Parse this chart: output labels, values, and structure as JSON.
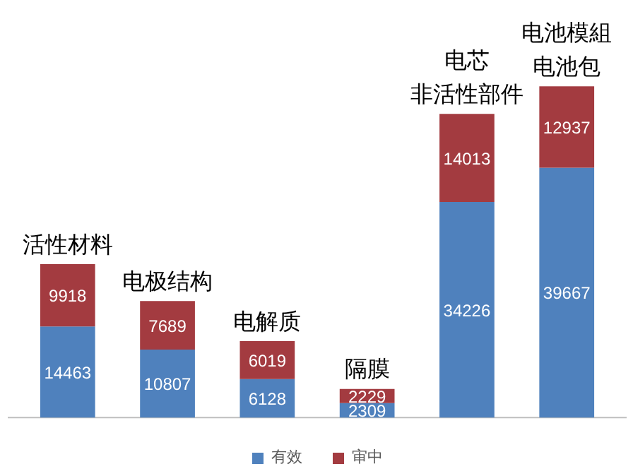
{
  "chart_data": {
    "type": "bar",
    "stacked": true,
    "categories": [
      "活性材料",
      "电极结构",
      "电解质",
      "隔膜",
      "非活性部件",
      "电池包"
    ],
    "annotations": [
      "电芯",
      "电池模組"
    ],
    "series": [
      {
        "name": "有效",
        "color": "#4f81bd",
        "values": [
          14463,
          10807,
          6128,
          2309,
          34226,
          39667
        ]
      },
      {
        "name": "审中",
        "color": "#a33b40",
        "values": [
          9918,
          7689,
          6019,
          2229,
          14013,
          12937
        ]
      }
    ],
    "data_labels": true,
    "legend": "bottom",
    "grid": false
  }
}
